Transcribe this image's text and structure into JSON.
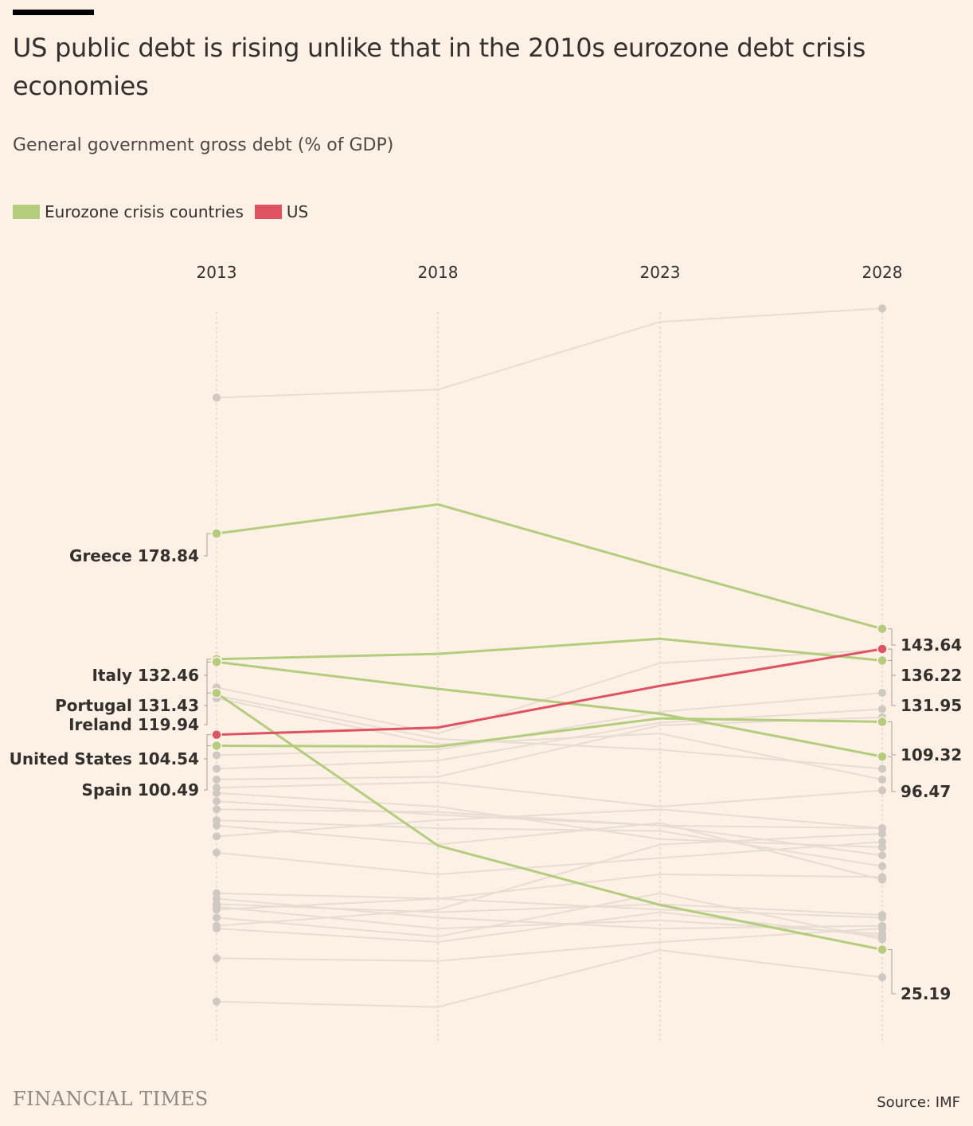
{
  "title": "US public debt is rising unlike that in the 2010s eurozone debt crisis economies",
  "subtitle": "General government gross debt (% of GDP)",
  "legend": [
    {
      "label": "Eurozone crisis countries",
      "color": "#b3cd7d"
    },
    {
      "label": "US",
      "color": "#e05260"
    }
  ],
  "brand": "FINANCIAL TIMES",
  "source": "Source: IMF",
  "colors": {
    "eurozone": "#b3cd7d",
    "us": "#e05260",
    "other": "#e8ddd3",
    "dot": "#cfc8c3"
  },
  "chart_data": {
    "type": "line",
    "x": [
      "2013",
      "2018",
      "2023",
      "2028"
    ],
    "ylim": [
      -7,
      260
    ],
    "grid": "vertical dashed lines at each year",
    "series": [
      {
        "name": "Greece",
        "group": "eurozone",
        "values": [
          178.84,
          189.6,
          166.3,
          143.64
        ],
        "left_label": "Greece 178.84",
        "right_label": "143.64"
      },
      {
        "name": "Italy",
        "group": "eurozone",
        "values": [
          132.46,
          134.4,
          140.0,
          131.95
        ],
        "left_label": "Italy 132.46",
        "right_label": "131.95"
      },
      {
        "name": "Portugal",
        "group": "eurozone",
        "values": [
          131.43,
          121.5,
          112.3,
          96.47
        ],
        "left_label": "Portugal 131.43",
        "right_label": "96.47"
      },
      {
        "name": "Ireland",
        "group": "eurozone",
        "values": [
          119.94,
          63.6,
          41.7,
          25.19
        ],
        "left_label": "Ireland 119.94",
        "right_label": "25.19"
      },
      {
        "name": "Spain",
        "group": "eurozone",
        "values": [
          100.49,
          100.2,
          110.6,
          109.32
        ],
        "left_label": "Spain 100.49",
        "right_label": "109.32"
      },
      {
        "name": "United States",
        "group": "us",
        "values": [
          104.54,
          107.2,
          122.6,
          136.22
        ],
        "left_label": "United States 104.54",
        "right_label": "136.22"
      },
      {
        "group": "other",
        "values": [
          229.0,
          232.0,
          257.0,
          262.0
        ]
      },
      {
        "group": "other",
        "values": [
          122.0,
          105.0,
          131.0,
          136.0
        ]
      },
      {
        "group": "other",
        "values": [
          119.0,
          103.0,
          99.0,
          92.0
        ]
      },
      {
        "group": "other",
        "values": [
          118.0,
          101.0,
          105.0,
          88.0
        ]
      },
      {
        "group": "other",
        "values": [
          97.0,
          99.0,
          113.0,
          120.0
        ]
      },
      {
        "group": "other",
        "values": [
          92.0,
          95.0,
          109.0,
          114.0
        ]
      },
      {
        "group": "other",
        "values": [
          88.0,
          89.0,
          108.0,
          111.0
        ]
      },
      {
        "group": "other",
        "values": [
          85.0,
          87.0,
          78.0,
          84.0
        ]
      },
      {
        "group": "other",
        "values": [
          83.0,
          78.0,
          66.0,
          63.0
        ]
      },
      {
        "group": "other",
        "values": [
          80.0,
          75.0,
          71.0,
          60.0
        ]
      },
      {
        "group": "other",
        "values": [
          77.0,
          76.0,
          71.0,
          70.0
        ]
      },
      {
        "group": "other",
        "values": [
          73.0,
          70.0,
          69.0,
          56.0
        ]
      },
      {
        "group": "other",
        "values": [
          71.0,
          64.0,
          72.0,
          51.0
        ]
      },
      {
        "group": "other",
        "values": [
          67.0,
          73.0,
          77.0,
          70.0
        ]
      },
      {
        "group": "other",
        "values": [
          61.0,
          53.0,
          59.0,
          65.0
        ]
      },
      {
        "group": "other",
        "values": [
          46.0,
          44.0,
          53.0,
          52.0
        ]
      },
      {
        "group": "other",
        "values": [
          44.0,
          37.0,
          33.0,
          34.0
        ]
      },
      {
        "group": "other",
        "values": [
          42.0,
          39.0,
          42.0,
          38.0
        ]
      },
      {
        "group": "other",
        "values": [
          41.0,
          33.0,
          36.0,
          31.0
        ]
      },
      {
        "group": "other",
        "values": [
          40.0,
          44.0,
          40.0,
          37.0
        ]
      },
      {
        "group": "other",
        "values": [
          37.0,
          30.0,
          46.0,
          29.0
        ]
      },
      {
        "group": "other",
        "values": [
          34.0,
          40.0,
          64.0,
          68.0
        ]
      },
      {
        "group": "other",
        "values": [
          33.0,
          28.0,
          39.0,
          30.0
        ]
      },
      {
        "group": "other",
        "values": [
          22.0,
          21.0,
          28.0,
          33.0
        ]
      },
      {
        "group": "other",
        "values": [
          6.0,
          4.0,
          25.0,
          15.0
        ]
      }
    ]
  }
}
